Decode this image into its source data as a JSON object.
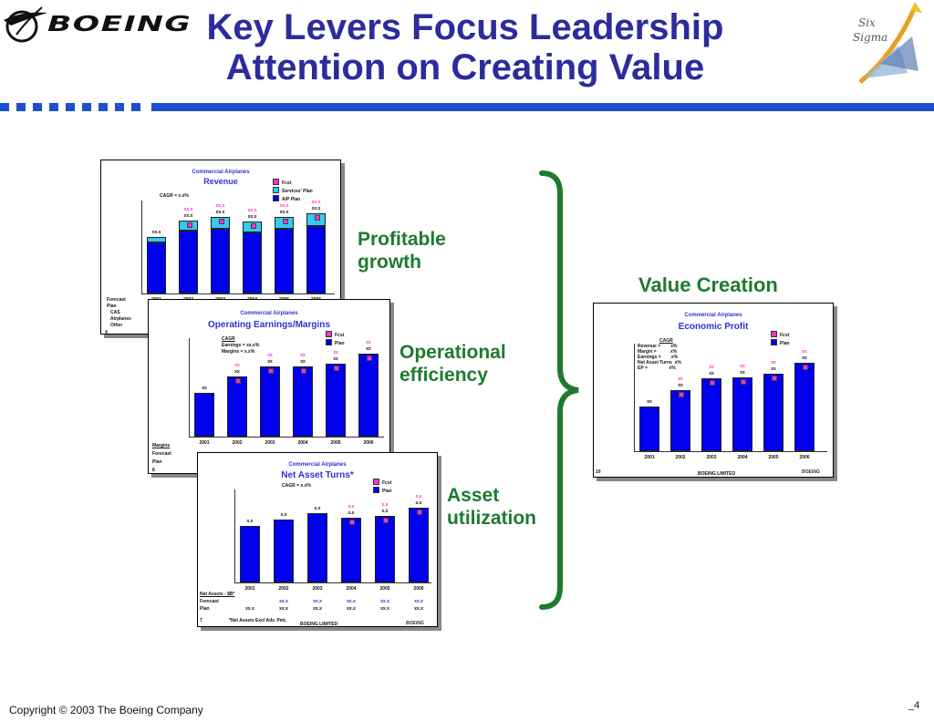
{
  "header": {
    "logo": "BOEING",
    "title_line1": "Key Levers Focus Leadership",
    "title_line2": "Attention on Creating Value",
    "six_sigma_top": "Six",
    "six_sigma_bottom": "Sigma"
  },
  "labels": {
    "profitable_growth": [
      "Profitable",
      "growth"
    ],
    "operational_efficiency": [
      "Operational",
      "efficiency"
    ],
    "asset_utilization": [
      "Asset",
      "utilization"
    ],
    "value_creation": "Value Creation"
  },
  "footer": {
    "copyright": "Copyright © 2003 The Boeing Company",
    "page_number": "4"
  },
  "colors": {
    "title": "#2c2c9c",
    "rule": "#1f4fd0",
    "label_green": "#1e7a2e",
    "bar_plan": "#0000ee",
    "bar_services": "#33ccee",
    "forecast_marker": "#ff33cc",
    "brace": "#1e7a2e"
  },
  "chart_data": [
    {
      "type": "bar",
      "supertitle": "Commercial Airplanes",
      "title": "Revenue",
      "note": "CAGR = x.x%",
      "legend": [
        "Fcst",
        "Services' Plan",
        "A/P Plan"
      ],
      "categories": [
        "2001",
        "2002",
        "2003",
        "2004",
        "2005",
        "2006"
      ],
      "series": [
        {
          "name": "A/P Plan",
          "values": [
            5.5,
            6.8,
            7.0,
            6.6,
            7.0,
            7.3
          ]
        },
        {
          "name": "Services' Plan",
          "values": [
            0.6,
            1.0,
            1.2,
            1.1,
            1.2,
            1.3
          ]
        }
      ],
      "data_labels": [
        "xx.x",
        "xx.x",
        "xx.x",
        "xx.x",
        "xx.x",
        "xx.x"
      ],
      "forecast_labels": [
        "",
        "xx.x",
        "xx.x",
        "xx.x",
        "xx.x",
        "xx.x"
      ],
      "ylim": [
        0,
        10
      ],
      "footnote": [
        "Forecast",
        "Plan",
        "CAS",
        "Airplanes",
        "Other"
      ],
      "page": "4"
    },
    {
      "type": "bar",
      "supertitle": "Commercial Airplanes",
      "title": "Operating Earnings/Margins",
      "note": [
        "CAGR",
        "Earnings =   xx.x%",
        "Margins =     x.x%"
      ],
      "legend": [
        "Fcst",
        "Plan"
      ],
      "categories": [
        "2001",
        "2002",
        "2003",
        "2004",
        "2005",
        "2006"
      ],
      "series": [
        {
          "name": "Plan",
          "values": [
            4.0,
            5.5,
            6.4,
            6.4,
            6.7,
            7.6
          ]
        }
      ],
      "data_labels": [
        "xx",
        "xx",
        "xx",
        "xx",
        "xx",
        "xx"
      ],
      "forecast_labels": [
        "",
        "xx",
        "xx",
        "xx",
        "xx",
        "xx"
      ],
      "ylim": [
        0,
        9
      ],
      "footnote": [
        "Margins",
        "Forecast",
        "Plan"
      ],
      "page": "8"
    },
    {
      "type": "bar",
      "supertitle": "Commercial Airplanes",
      "title": "Net Asset Turns*",
      "note": "CAGR = x.x%",
      "legend": [
        "Fcst",
        "Plan"
      ],
      "categories": [
        "2001",
        "2002",
        "2003",
        "2004",
        "2005",
        "2006"
      ],
      "series": [
        {
          "name": "Plan",
          "values": [
            5.5,
            6.1,
            6.7,
            6.3,
            6.4,
            7.2
          ]
        }
      ],
      "data_labels": [
        "x.x",
        "x.x",
        "x.x",
        "x.x",
        "x.x",
        "x.x"
      ],
      "forecast_labels": [
        "",
        "",
        "",
        "x.x",
        "x.x",
        "x.x"
      ],
      "ylim": [
        0,
        9
      ],
      "table": {
        "header": "Net Assets - $B*",
        "rows": [
          {
            "label": "Forecast",
            "values": [
              "",
              "xx.x",
              "xx.x",
              "xx.x",
              "xx.x",
              "xx.x"
            ]
          },
          {
            "label": "Plan",
            "values": [
              "xx.x",
              "xx.x",
              "xx.x",
              "xx.x",
              "xx.x",
              "xx.x"
            ]
          }
        ]
      },
      "footnote": "*Net Assets Excl Adv. Pmt.",
      "confidential": "BOEING LIMITED",
      "page": "7"
    },
    {
      "type": "bar",
      "supertitle": "Commercial Airplanes",
      "title": "Economic Profit",
      "note": [
        "CAGR",
        "Revenue =        x%",
        "Margin =           x%",
        "Earnings =        x%",
        "Net Asset Turns  x%",
        "EP =                 x%"
      ],
      "legend": [
        "Fcst",
        "Plan"
      ],
      "categories": [
        "2001",
        "2002",
        "2003",
        "2004",
        "2005",
        "2006"
      ],
      "series": [
        {
          "name": "Plan",
          "values": [
            3.7,
            5.1,
            6.1,
            6.2,
            6.5,
            7.4
          ]
        }
      ],
      "data_labels": [
        "xx",
        "xx",
        "xx",
        "xx",
        "xx",
        "xx"
      ],
      "forecast_labels": [
        "",
        "xx",
        "xx",
        "xx",
        "xx",
        "xx"
      ],
      "ylim": [
        0,
        9
      ],
      "confidential": "BOEING LIMITED",
      "page": "10"
    }
  ]
}
